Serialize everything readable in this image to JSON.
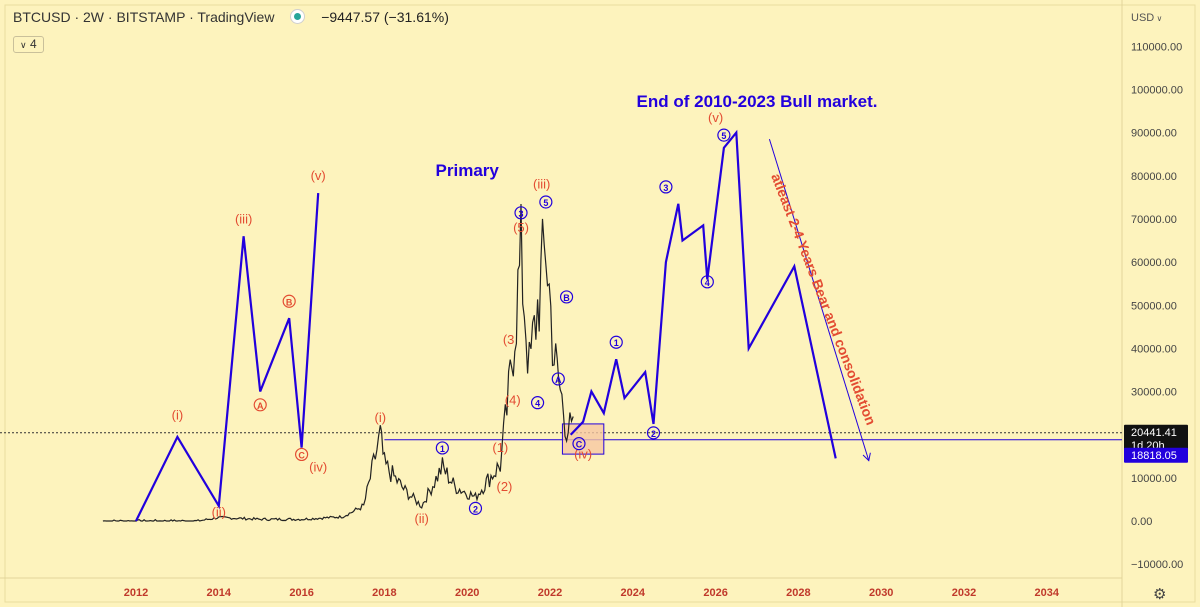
{
  "header": {
    "symbol": "BTCUSD",
    "interval": "2W",
    "exchange": "BITSTAMP",
    "platform": "TradingView",
    "change": "−9447.57 (−31.61%)",
    "indicator_badge": "4",
    "currency": "USD",
    "status_color": "#26a69a"
  },
  "price_tags": {
    "current": "20441.41",
    "countdown": "1d 20h",
    "level": "18818.05"
  },
  "colors": {
    "background": "#fdf3bd",
    "wave_line": "#2200dd",
    "wave_label": "#e34c32",
    "candle": "#222222"
  },
  "chart_data": {
    "type": "line",
    "title": "",
    "xlabel": "",
    "ylabel": "",
    "x_ticks": [
      "2012",
      "2014",
      "2016",
      "2018",
      "2020",
      "2022",
      "2024",
      "2026",
      "2028",
      "2030",
      "2032",
      "2034"
    ],
    "y_ticks": [
      "110000.00",
      "100000.00",
      "90000.00",
      "80000.00",
      "70000.00",
      "60000.00",
      "50000.00",
      "40000.00",
      "30000.00",
      "20000.00",
      "10000.00",
      "0.00",
      "−10000.00"
    ],
    "xlim": [
      2011.0,
      2036.0
    ],
    "ylim": [
      -11000,
      117000
    ],
    "series": [
      {
        "kind": "projection",
        "points": [
          [
            2012.0,
            0
          ],
          [
            2013.0,
            19500
          ],
          [
            2014.0,
            3500
          ],
          [
            2014.6,
            66000
          ],
          [
            2015.0,
            30000
          ],
          [
            2015.7,
            47000
          ],
          [
            2016.0,
            17000
          ],
          [
            2016.4,
            76000
          ]
        ]
      },
      {
        "kind": "projection",
        "points": [
          [
            2022.5,
            20000
          ],
          [
            2022.8,
            23000
          ],
          [
            2023.0,
            30000
          ],
          [
            2023.3,
            25000
          ],
          [
            2023.6,
            37500
          ],
          [
            2023.8,
            28500
          ],
          [
            2024.3,
            34500
          ],
          [
            2024.5,
            22500
          ],
          [
            2024.8,
            60000
          ],
          [
            2025.1,
            73500
          ],
          [
            2025.2,
            65000
          ],
          [
            2025.7,
            68500
          ],
          [
            2025.8,
            56000
          ],
          [
            2026.2,
            86500
          ],
          [
            2026.5,
            90000
          ],
          [
            2026.8,
            40000
          ],
          [
            2027.9,
            59000
          ],
          [
            2028.9,
            14500
          ]
        ]
      }
    ],
    "price_history": [
      [
        2011.2,
        0
      ],
      [
        2013.5,
        0
      ],
      [
        2014.0,
        800
      ],
      [
        2015.0,
        400
      ],
      [
        2016.0,
        400
      ],
      [
        2017.0,
        1000
      ],
      [
        2017.5,
        3500
      ],
      [
        2017.9,
        19700
      ],
      [
        2018.0,
        13000
      ],
      [
        2018.5,
        7000
      ],
      [
        2018.9,
        3500
      ],
      [
        2019.4,
        12500
      ],
      [
        2019.7,
        8000
      ],
      [
        2020.2,
        5500
      ],
      [
        2020.5,
        9500
      ],
      [
        2020.8,
        13000
      ],
      [
        2021.0,
        29000
      ],
      [
        2021.3,
        61000
      ],
      [
        2021.5,
        35000
      ],
      [
        2021.9,
        64000
      ],
      [
        2022.1,
        38000
      ],
      [
        2022.4,
        22000
      ],
      [
        2022.6,
        20000
      ]
    ],
    "horizontal_lines": [
      {
        "value": 18818.05,
        "style": "solid"
      },
      {
        "value": 20441.41,
        "style": "dotted"
      }
    ],
    "box": {
      "x0": 2022.3,
      "x1": 2023.3,
      "y0": 15500,
      "y1": 22500
    },
    "wave_labels": [
      {
        "text": "(i)",
        "x": 2013.0,
        "y": 23500
      },
      {
        "text": "(ii)",
        "x": 2014.0,
        "y": 1000
      },
      {
        "text": "(iii)",
        "x": 2014.6,
        "y": 69000
      },
      {
        "text": "A",
        "x": 2015.0,
        "y": 26000,
        "circled": true
      },
      {
        "text": "B",
        "x": 2015.7,
        "y": 50000,
        "circled": true
      },
      {
        "text": "C",
        "x": 2016.0,
        "y": 14500,
        "circled": true
      },
      {
        "text": "(iv)",
        "x": 2016.4,
        "y": 11500
      },
      {
        "text": "(v)",
        "x": 2016.4,
        "y": 79000
      },
      {
        "text": "(i)",
        "x": 2017.9,
        "y": 23000
      },
      {
        "text": "(ii)",
        "x": 2018.9,
        "y": -500
      },
      {
        "text": "(1)",
        "x": 2020.8,
        "y": 16000
      },
      {
        "text": "(2)",
        "x": 2020.9,
        "y": 7000
      },
      {
        "text": "(3",
        "x": 2021.0,
        "y": 41000
      },
      {
        "text": "(4)",
        "x": 2021.1,
        "y": 27000
      },
      {
        "text": "(5)",
        "x": 2021.3,
        "y": 67000
      },
      {
        "text": "(iii)",
        "x": 2021.8,
        "y": 77000
      },
      {
        "text": "(iv)",
        "x": 2022.8,
        "y": 14500
      },
      {
        "text": "(v)",
        "x": 2026.0,
        "y": 92500
      }
    ],
    "circled_labels": [
      {
        "text": "1",
        "x": 2019.4,
        "y": 16000,
        "color": "blue"
      },
      {
        "text": "2",
        "x": 2020.2,
        "y": 2000,
        "color": "blue"
      },
      {
        "text": "3",
        "x": 2021.3,
        "y": 70500,
        "color": "blue"
      },
      {
        "text": "4",
        "x": 2021.7,
        "y": 26500,
        "color": "blue"
      },
      {
        "text": "5",
        "x": 2021.9,
        "y": 73000,
        "color": "blue"
      },
      {
        "text": "A",
        "x": 2022.2,
        "y": 32000,
        "color": "blue"
      },
      {
        "text": "B",
        "x": 2022.4,
        "y": 51000,
        "color": "blue"
      },
      {
        "text": "C",
        "x": 2022.7,
        "y": 17000,
        "color": "blue"
      },
      {
        "text": "1",
        "x": 2023.6,
        "y": 40500,
        "color": "blue"
      },
      {
        "text": "2",
        "x": 2024.5,
        "y": 19500,
        "color": "blue"
      },
      {
        "text": "3",
        "x": 2024.8,
        "y": 76500,
        "color": "blue"
      },
      {
        "text": "4",
        "x": 2025.8,
        "y": 54500,
        "color": "blue"
      },
      {
        "text": "5",
        "x": 2026.2,
        "y": 88500,
        "color": "blue"
      }
    ],
    "annotations": [
      {
        "text": "End of 2010-2023 Bull market.",
        "x": 2027.0,
        "y": 96000,
        "color": "blue"
      },
      {
        "text": "Primary",
        "x": 2020.0,
        "y": 80000,
        "color": "blue"
      },
      {
        "text": "atleast 2-4 Years Bear and consolidation",
        "x": 2028.5,
        "y": 51000,
        "color": "red",
        "rotation": 69
      }
    ],
    "arrow": {
      "x0": 2027.3,
      "y0": 88500,
      "x1": 2029.7,
      "y1": 14000
    }
  }
}
